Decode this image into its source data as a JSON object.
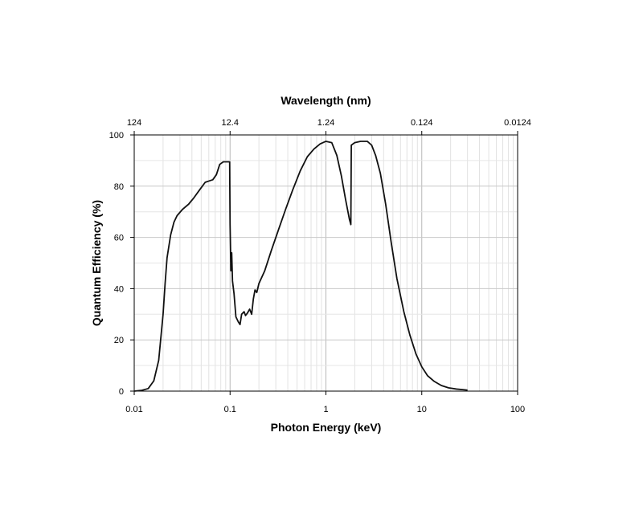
{
  "chart_data": {
    "type": "line",
    "xlabel": "Photon Energy (keV)",
    "ylabel": "Quantum Efficiency (%)",
    "x2label": "Wavelength (nm)",
    "xscale": "log",
    "xlim": [
      0.01,
      100
    ],
    "ylim": [
      0,
      100
    ],
    "grid": true,
    "x_ticks": [
      {
        "value": 0.01,
        "label": "0.01"
      },
      {
        "value": 0.1,
        "label": "0.1"
      },
      {
        "value": 1,
        "label": "1"
      },
      {
        "value": 10,
        "label": "10"
      },
      {
        "value": 100,
        "label": "100"
      }
    ],
    "x2_ticks": [
      {
        "value": 0.01,
        "label": "124"
      },
      {
        "value": 0.1,
        "label": "12.4"
      },
      {
        "value": 1,
        "label": "1.24"
      },
      {
        "value": 10,
        "label": "0.124"
      },
      {
        "value": 100,
        "label": "0.0124"
      }
    ],
    "y_ticks": [
      {
        "value": 0,
        "label": "0"
      },
      {
        "value": 20,
        "label": "20"
      },
      {
        "value": 40,
        "label": "40"
      },
      {
        "value": 60,
        "label": "60"
      },
      {
        "value": 80,
        "label": "80"
      },
      {
        "value": 100,
        "label": "100"
      }
    ],
    "series": [
      {
        "color": "#111111",
        "points": [
          [
            0.01,
            0.0
          ],
          [
            0.012,
            0.3
          ],
          [
            0.014,
            1.0
          ],
          [
            0.016,
            4.0
          ],
          [
            0.018,
            12.0
          ],
          [
            0.02,
            30.0
          ],
          [
            0.021,
            42.0
          ],
          [
            0.022,
            52.0
          ],
          [
            0.024,
            61.0
          ],
          [
            0.026,
            66.0
          ],
          [
            0.028,
            68.5
          ],
          [
            0.032,
            71.0
          ],
          [
            0.037,
            73.0
          ],
          [
            0.042,
            75.5
          ],
          [
            0.048,
            78.5
          ],
          [
            0.055,
            81.5
          ],
          [
            0.06,
            82.0
          ],
          [
            0.066,
            82.5
          ],
          [
            0.072,
            84.5
          ],
          [
            0.078,
            88.5
          ],
          [
            0.085,
            89.5
          ],
          [
            0.095,
            89.5
          ],
          [
            0.099,
            89.5
          ],
          [
            0.1,
            65.0
          ],
          [
            0.102,
            47.0
          ],
          [
            0.104,
            54.0
          ],
          [
            0.106,
            43.0
          ],
          [
            0.11,
            38.0
          ],
          [
            0.115,
            29.0
          ],
          [
            0.122,
            27.0
          ],
          [
            0.127,
            26.0
          ],
          [
            0.132,
            30.0
          ],
          [
            0.14,
            31.0
          ],
          [
            0.145,
            29.5
          ],
          [
            0.152,
            30.5
          ],
          [
            0.16,
            32.0
          ],
          [
            0.168,
            30.0
          ],
          [
            0.175,
            36.0
          ],
          [
            0.182,
            39.5
          ],
          [
            0.19,
            38.5
          ],
          [
            0.2,
            42.0
          ],
          [
            0.23,
            47.0
          ],
          [
            0.27,
            55.0
          ],
          [
            0.32,
            63.0
          ],
          [
            0.38,
            71.0
          ],
          [
            0.45,
            78.5
          ],
          [
            0.54,
            86.0
          ],
          [
            0.64,
            91.5
          ],
          [
            0.75,
            94.5
          ],
          [
            0.87,
            96.5
          ],
          [
            1.0,
            97.5
          ],
          [
            1.15,
            97.0
          ],
          [
            1.3,
            92.0
          ],
          [
            1.45,
            84.0
          ],
          [
            1.6,
            75.0
          ],
          [
            1.76,
            67.0
          ],
          [
            1.82,
            65.0
          ],
          [
            1.84,
            96.0
          ],
          [
            2.0,
            97.0
          ],
          [
            2.3,
            97.5
          ],
          [
            2.7,
            97.5
          ],
          [
            3.0,
            96.0
          ],
          [
            3.3,
            92.0
          ],
          [
            3.7,
            85.0
          ],
          [
            4.2,
            73.0
          ],
          [
            4.8,
            58.0
          ],
          [
            5.5,
            44.0
          ],
          [
            6.5,
            31.0
          ],
          [
            7.5,
            22.0
          ],
          [
            8.7,
            14.5
          ],
          [
            10.0,
            9.5
          ],
          [
            11.5,
            6.0
          ],
          [
            13.5,
            3.8
          ],
          [
            16.0,
            2.2
          ],
          [
            19.0,
            1.3
          ],
          [
            23.0,
            0.8
          ],
          [
            28.0,
            0.5
          ],
          [
            30.0,
            0.4
          ]
        ]
      }
    ]
  }
}
